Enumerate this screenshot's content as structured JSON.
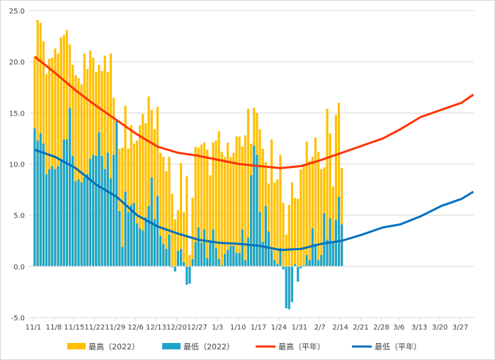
{
  "chart_data": {
    "type": "bar",
    "title": "",
    "xlabel": "",
    "ylabel": "",
    "ylim": [
      -5,
      25
    ],
    "yticks": [
      "-5.0",
      "0.0",
      "5.0",
      "10.0",
      "15.0",
      "20.0",
      "25.0"
    ],
    "grid": true,
    "legend_placement": "bottom",
    "x_start": "11/1",
    "x_end": "3/31",
    "xtick_labels": [
      "11/1",
      "11/8",
      "11/15",
      "11/22",
      "11/29",
      "12/6",
      "12/13",
      "12/20",
      "12/27",
      "1/3",
      "1/10",
      "1/17",
      "1/24",
      "1/31",
      "2/7",
      "2/14",
      "2/21",
      "2/28",
      "3/6",
      "3/13",
      "3/20",
      "3/27"
    ],
    "bar_series": [
      {
        "name": "最高（2022）",
        "color": "#FFC000",
        "values": [
          20.5,
          24.1,
          23.8,
          22.0,
          18.8,
          20.3,
          20.4,
          21.3,
          20.8,
          22.4,
          22.6,
          23.1,
          21.7,
          19.7,
          18.7,
          18.4,
          17.8,
          20.8,
          19.3,
          21.1,
          20.4,
          19.0,
          19.7,
          19.1,
          20.6,
          19.0,
          20.8,
          16.5,
          14.3,
          11.5,
          11.6,
          15.7,
          11.5,
          13.8,
          12.0,
          12.3,
          13.8,
          14.9,
          14.0,
          16.6,
          15.3,
          13.4,
          15.6,
          11.1,
          10.7,
          9.3,
          10.7,
          7.1,
          4.6,
          5.5,
          10.1,
          5.3,
          8.8,
          1.1,
          6.7,
          11.7,
          11.6,
          11.9,
          12.1,
          11.4,
          8.9,
          12.1,
          12.3,
          13.2,
          11.2,
          10.7,
          12.1,
          10.7,
          11.1,
          12.7,
          12.7,
          11.7,
          12.8,
          15.4,
          12.0,
          15.5,
          15.0,
          13.4,
          11.5,
          10.2,
          8.1,
          12.4,
          8.2,
          8.5,
          10.9,
          6.2,
          3.1,
          6.0,
          8.2,
          6.7,
          6.6,
          9.5,
          9.8,
          12.2,
          10.3,
          10.7,
          12.6,
          11.2,
          9.5,
          9.7,
          15.4,
          13.0,
          7.8,
          14.8,
          16.0,
          9.6
        ]
      },
      {
        "name": "最低（2022）",
        "color": "#1CA5C9",
        "values": [
          13.5,
          12.3,
          13.0,
          12.0,
          9.0,
          9.5,
          9.8,
          9.5,
          9.8,
          10.4,
          12.4,
          12.4,
          15.5,
          10.8,
          8.3,
          8.5,
          8.2,
          8.7,
          9.0,
          10.5,
          10.9,
          10.8,
          13.1,
          10.8,
          9.5,
          11.1,
          8.6,
          10.9,
          14.2,
          5.4,
          1.9,
          7.3,
          5.3,
          6.0,
          6.2,
          4.2,
          3.7,
          3.5,
          4.8,
          5.9,
          8.7,
          4.6,
          6.9,
          3.0,
          2.2,
          1.7,
          3.1,
          -0.1,
          -0.5,
          1.5,
          1.7,
          0.4,
          -1.8,
          -1.7,
          0.7,
          2.4,
          3.8,
          2.3,
          3.6,
          0.8,
          2.5,
          3.6,
          1.8,
          0.7,
          0.1,
          1.2,
          1.6,
          2.0,
          2.0,
          1.3,
          1.3,
          3.6,
          0.6,
          2.8,
          8.9,
          11.8,
          10.9,
          5.3,
          2.4,
          5.9,
          3.4,
          1.6,
          0.6,
          0.2,
          1.8,
          -0.3,
          -4.1,
          -4.2,
          -3.5,
          0.2,
          -1.5,
          -0.2,
          0.1,
          1.1,
          0.6,
          3.7,
          2.2,
          0.6,
          1.1,
          5.2,
          2.6,
          4.7,
          2.4,
          4.5,
          6.8,
          4.1
        ]
      }
    ],
    "line_series": [
      {
        "name": "最高（平年）",
        "color": "#FF3300",
        "points": [
          [
            "11/1",
            20.5
          ],
          [
            "11/8",
            18.9
          ],
          [
            "11/15",
            17.2
          ],
          [
            "11/22",
            15.7
          ],
          [
            "11/29",
            14.3
          ],
          [
            "12/6",
            12.9
          ],
          [
            "12/13",
            11.7
          ],
          [
            "12/20",
            11.1
          ],
          [
            "12/27",
            10.8
          ],
          [
            "1/3",
            10.4
          ],
          [
            "1/10",
            10.0
          ],
          [
            "1/17",
            9.8
          ],
          [
            "1/24",
            9.6
          ],
          [
            "1/31",
            9.8
          ],
          [
            "2/7",
            10.4
          ],
          [
            "2/14",
            11.1
          ],
          [
            "2/21",
            11.8
          ],
          [
            "2/28",
            12.5
          ],
          [
            "3/6",
            13.4
          ],
          [
            "3/13",
            14.6
          ],
          [
            "3/20",
            15.3
          ],
          [
            "3/27",
            16.0
          ],
          [
            "3/31",
            16.8
          ]
        ]
      },
      {
        "name": "最低（平年）",
        "color": "#0070C0",
        "points": [
          [
            "11/1",
            11.4
          ],
          [
            "11/8",
            10.7
          ],
          [
            "11/15",
            9.6
          ],
          [
            "11/22",
            8.0
          ],
          [
            "11/29",
            6.8
          ],
          [
            "12/6",
            5.0
          ],
          [
            "12/13",
            3.9
          ],
          [
            "12/20",
            3.2
          ],
          [
            "12/27",
            2.6
          ],
          [
            "1/3",
            2.3
          ],
          [
            "1/10",
            2.2
          ],
          [
            "1/17",
            2.0
          ],
          [
            "1/24",
            1.6
          ],
          [
            "1/31",
            1.7
          ],
          [
            "2/7",
            2.2
          ],
          [
            "2/14",
            2.5
          ],
          [
            "2/21",
            3.1
          ],
          [
            "2/28",
            3.8
          ],
          [
            "3/6",
            4.1
          ],
          [
            "3/13",
            4.9
          ],
          [
            "3/20",
            5.9
          ],
          [
            "3/27",
            6.6
          ],
          [
            "3/31",
            7.3
          ]
        ]
      }
    ]
  }
}
